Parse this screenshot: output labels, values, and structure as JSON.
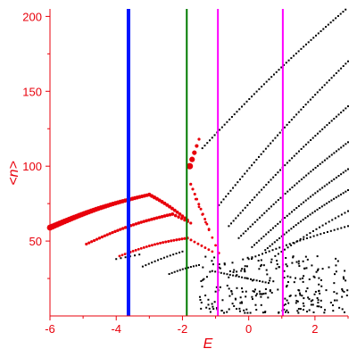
{
  "chart_data": {
    "type": "scatter",
    "xlabel": "E",
    "ylabel": "<n>",
    "xlim": [
      -6,
      3
    ],
    "ylim": [
      0,
      205
    ],
    "xticks": [
      -6,
      -4,
      -2,
      0,
      2
    ],
    "yticks": [
      50,
      100,
      150,
      200
    ],
    "grid": false,
    "colors": {
      "axis": "#e8000b",
      "red_points": "#e8000b",
      "black_points": "#000000",
      "blue_line": "#0014ff",
      "green_line": "#007a00",
      "magenta_lines": "#ff00ff"
    },
    "vertical_lines": [
      {
        "x": -3.63,
        "color": "#0014ff",
        "width": 4
      },
      {
        "x": -1.87,
        "color": "#007a00",
        "width": 2
      },
      {
        "x": -0.93,
        "color": "#ff00ff",
        "width": 2
      },
      {
        "x": 1.03,
        "color": "#ff00ff",
        "width": 2
      }
    ],
    "red_branches": [
      {
        "from": [
          -6.0,
          59
        ],
        "to": [
          -3.0,
          81
        ],
        "bulge": 2,
        "count": 42,
        "size_from": 3.4,
        "size_to": 2.0
      },
      {
        "from": [
          -3.0,
          81
        ],
        "to": [
          -1.85,
          64
        ],
        "bulge": 1,
        "count": 16,
        "size_from": 2.2,
        "size_to": 1.8
      },
      {
        "from": [
          -4.9,
          48
        ],
        "to": [
          -2.3,
          68
        ],
        "bulge": 2,
        "count": 34,
        "size_from": 1.6,
        "size_to": 1.9
      },
      {
        "from": [
          -2.3,
          68
        ],
        "to": [
          -1.75,
          62
        ],
        "bulge": 0,
        "count": 7,
        "size_from": 1.8,
        "size_to": 1.6
      },
      {
        "from": [
          -3.9,
          40
        ],
        "to": [
          -1.85,
          52
        ],
        "bulge": 1.5,
        "count": 26,
        "size_from": 1.4,
        "size_to": 1.6
      },
      {
        "from": [
          -1.85,
          52
        ],
        "to": [
          -1.1,
          43
        ],
        "bulge": 0,
        "count": 8,
        "size_from": 1.5,
        "size_to": 1.4
      },
      {
        "from": [
          -1.78,
          100
        ],
        "to": [
          -1.5,
          118
        ],
        "bulge": 0,
        "count": 5,
        "size_from": 3.6,
        "size_to": 1.6
      },
      {
        "from": [
          -1.75,
          88
        ],
        "to": [
          -1.2,
          58
        ],
        "bulge": 0,
        "count": 10,
        "size_from": 1.6,
        "size_to": 1.4
      },
      {
        "from": [
          -1.6,
          78
        ],
        "to": [
          -0.9,
          42
        ],
        "bulge": 0,
        "count": 8,
        "size_from": 1.4,
        "size_to": 1.4
      }
    ],
    "black_branches": [
      {
        "from": [
          -1.4,
          112
        ],
        "to": [
          3.0,
          206
        ],
        "bulge": 3,
        "count": 60
      },
      {
        "from": [
          -0.9,
          74
        ],
        "to": [
          3.0,
          170
        ],
        "bulge": 3,
        "count": 56
      },
      {
        "from": [
          -0.6,
          60
        ],
        "to": [
          3.0,
          140
        ],
        "bulge": 3,
        "count": 52
      },
      {
        "from": [
          -0.3,
          52
        ],
        "to": [
          3.0,
          116
        ],
        "bulge": 2.5,
        "count": 48
      },
      {
        "from": [
          0.1,
          46
        ],
        "to": [
          3.0,
          98
        ],
        "bulge": 2,
        "count": 42
      },
      {
        "from": [
          0.5,
          44
        ],
        "to": [
          3.0,
          84
        ],
        "bulge": 2,
        "count": 36
      },
      {
        "from": [
          -2.4,
          28
        ],
        "to": [
          -1.5,
          34
        ],
        "bulge": 0.5,
        "count": 12
      },
      {
        "from": [
          -3.2,
          33
        ],
        "to": [
          -2.0,
          43
        ],
        "bulge": 0.5,
        "count": 14
      },
      {
        "from": [
          -4.0,
          38
        ],
        "to": [
          -3.3,
          41
        ],
        "bulge": 0,
        "count": 6
      },
      {
        "from": [
          -1.1,
          30
        ],
        "to": [
          0.6,
          22
        ],
        "bulge": 0,
        "count": 20
      },
      {
        "from": [
          0.0,
          38
        ],
        "to": [
          3.0,
          60
        ],
        "bulge": 1,
        "count": 30
      },
      {
        "from": [
          0.8,
          40
        ],
        "to": [
          3.0,
          70
        ],
        "bulge": 1,
        "count": 24
      }
    ],
    "black_cloud": {
      "x_range": [
        -1.5,
        3.0
      ],
      "y_range": [
        2,
        40
      ],
      "count": 260
    }
  }
}
